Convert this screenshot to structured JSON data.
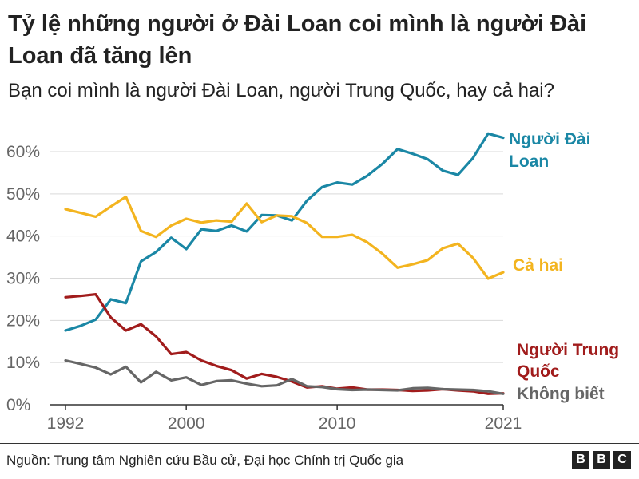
{
  "title": "Tỷ lệ những người ở Đài Loan coi mình là người Đài Loan đã tăng lên",
  "subtitle": "Bạn coi mình là người Đài Loan, người Trung Quốc, hay cả hai?",
  "source": "Nguồn: Trung tâm Nghiên cứu Bầu cử, Đại học Chính trị Quốc gia",
  "logo_letters": [
    "B",
    "B",
    "C"
  ],
  "chart_data": {
    "type": "line",
    "title": "Tỷ lệ những người ở Đài Loan coi mình là người Đài Loan đã tăng lên",
    "subtitle": "Bạn coi mình là người Đài Loan, người Trung Quốc, hay cả hai?",
    "x": [
      1992,
      1993,
      1994,
      1995,
      1996,
      1997,
      1998,
      1999,
      2000,
      2001,
      2002,
      2003,
      2004,
      2005,
      2006,
      2007,
      2008,
      2009,
      2010,
      2011,
      2012,
      2013,
      2014,
      2015,
      2016,
      2017,
      2018,
      2019,
      2020,
      2021
    ],
    "xticks": [
      1992,
      2000,
      2010,
      2021
    ],
    "xtick_labels": [
      "1992",
      "2000",
      "2010",
      "2021"
    ],
    "yticks": [
      0,
      10,
      20,
      30,
      40,
      50,
      60
    ],
    "ytick_labels": [
      "0%",
      "10%",
      "20%",
      "30%",
      "40%",
      "50%",
      "60%"
    ],
    "ylim": [
      0,
      60
    ],
    "xlim": [
      1992,
      2021
    ],
    "grid": "horizontal",
    "series": [
      {
        "name": "Người Đài Loan",
        "label_lines": [
          "Người Đài",
          "Loan"
        ],
        "color": "#1a87a5",
        "values": [
          17.6,
          18.7,
          20.2,
          25.0,
          24.1,
          34.0,
          36.2,
          39.6,
          36.9,
          41.6,
          41.2,
          42.5,
          41.1,
          45.0,
          44.9,
          43.7,
          48.4,
          51.6,
          52.7,
          52.2,
          54.3,
          57.1,
          60.6,
          59.5,
          58.2,
          55.5,
          54.5,
          58.5,
          64.3,
          63.3
        ]
      },
      {
        "name": "Cả hai",
        "label_lines": [
          "Cả hai"
        ],
        "color": "#f3b41f",
        "values": [
          46.4,
          45.5,
          44.6,
          47.0,
          49.3,
          41.2,
          39.8,
          42.5,
          44.1,
          43.2,
          43.7,
          43.4,
          47.7,
          43.3,
          44.9,
          44.7,
          43.1,
          39.8,
          39.8,
          40.3,
          38.5,
          35.8,
          32.5,
          33.3,
          34.3,
          37.1,
          38.2,
          34.8,
          29.9,
          31.4
        ]
      },
      {
        "name": "Người Trung Quốc",
        "label_lines": [
          "Người Trung",
          "Quốc"
        ],
        "color": "#a11c1c",
        "values": [
          25.5,
          25.8,
          26.2,
          20.7,
          17.6,
          19.1,
          16.2,
          12.0,
          12.5,
          10.5,
          9.2,
          8.2,
          6.2,
          7.3,
          6.6,
          5.5,
          4.1,
          4.4,
          3.8,
          4.1,
          3.6,
          3.6,
          3.5,
          3.3,
          3.4,
          3.7,
          3.4,
          3.2,
          2.6,
          2.7
        ]
      },
      {
        "name": "Không biết",
        "label_lines": [
          "Không biết"
        ],
        "color": "#666666",
        "values": [
          10.5,
          9.7,
          8.8,
          7.2,
          9.0,
          5.3,
          7.8,
          5.8,
          6.5,
          4.7,
          5.6,
          5.8,
          5.0,
          4.4,
          4.6,
          6.1,
          4.4,
          4.2,
          3.7,
          3.5,
          3.6,
          3.5,
          3.4,
          3.9,
          4.0,
          3.7,
          3.6,
          3.5,
          3.2,
          2.6
        ]
      }
    ]
  }
}
